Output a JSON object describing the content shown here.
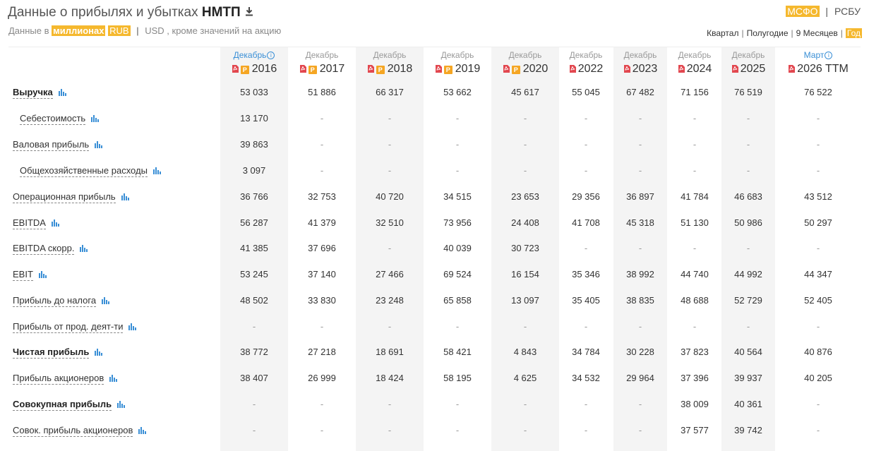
{
  "header": {
    "title_prefix": "Данные о прибылях и убытках",
    "company": "НМТП",
    "subtitle_prefix": "Данные в",
    "unit_scale": "миллионах",
    "currency_active": "RUB",
    "currency_other": "USD",
    "subtitle_suffix": ", кроме значений на акцию"
  },
  "standards": {
    "active": "МСФО",
    "other": "РСБУ"
  },
  "periods": [
    "Квартал",
    "Полугодие",
    "9 Месяцев",
    "Год"
  ],
  "active_period": "Год",
  "columns": [
    {
      "month": "Декабрь",
      "year": "2016",
      "info": true,
      "pdf": true,
      "p": true
    },
    {
      "month": "Декабрь",
      "year": "2017",
      "info": false,
      "pdf": true,
      "p": true
    },
    {
      "month": "Декабрь",
      "year": "2018",
      "info": false,
      "pdf": true,
      "p": true
    },
    {
      "month": "Декабрь",
      "year": "2019",
      "info": false,
      "pdf": true,
      "p": true
    },
    {
      "month": "Декабрь",
      "year": "2020",
      "info": false,
      "pdf": true,
      "p": true
    },
    {
      "month": "Декабрь",
      "year": "2022",
      "info": false,
      "pdf": true,
      "p": false
    },
    {
      "month": "Декабрь",
      "year": "2023",
      "info": false,
      "pdf": true,
      "p": false
    },
    {
      "month": "Декабрь",
      "year": "2024",
      "info": false,
      "pdf": true,
      "p": false
    },
    {
      "month": "Декабрь",
      "year": "2025",
      "info": false,
      "pdf": true,
      "p": false
    },
    {
      "month": "Март",
      "year": "2026 TTM",
      "info": true,
      "pdf": true,
      "p": false
    }
  ],
  "rows": [
    {
      "label": "Выручка",
      "bold": true,
      "indent": false,
      "values": [
        "53 033",
        "51 886",
        "66 317",
        "53 662",
        "45 617",
        "55 045",
        "67 482",
        "71 156",
        "76 519",
        "76 522"
      ]
    },
    {
      "label": "Себестоимость",
      "bold": false,
      "indent": true,
      "values": [
        "13 170",
        "-",
        "-",
        "-",
        "-",
        "-",
        "-",
        "-",
        "-",
        "-"
      ]
    },
    {
      "label": "Валовая прибыль",
      "bold": false,
      "indent": false,
      "values": [
        "39 863",
        "-",
        "-",
        "-",
        "-",
        "-",
        "-",
        "-",
        "-",
        "-"
      ]
    },
    {
      "label": "Общехозяйственные расходы",
      "bold": false,
      "indent": true,
      "values": [
        "3 097",
        "-",
        "-",
        "-",
        "-",
        "-",
        "-",
        "-",
        "-",
        "-"
      ]
    },
    {
      "label": "Операционная прибыль",
      "bold": false,
      "indent": false,
      "values": [
        "36 766",
        "32 753",
        "40 720",
        "34 515",
        "23 653",
        "29 356",
        "36 897",
        "41 784",
        "46 683",
        "43 512"
      ]
    },
    {
      "label": "EBITDA",
      "bold": false,
      "indent": false,
      "values": [
        "56 287",
        "41 379",
        "32 510",
        "73 956",
        "24 408",
        "41 708",
        "45 318",
        "51 130",
        "50 986",
        "50 297"
      ]
    },
    {
      "label": "EBITDA скорр.",
      "bold": false,
      "indent": false,
      "values": [
        "41 385",
        "37 696",
        "-",
        "40 039",
        "30 723",
        "-",
        "-",
        "-",
        "-",
        "-"
      ]
    },
    {
      "label": "EBIT",
      "bold": false,
      "indent": false,
      "values": [
        "53 245",
        "37 140",
        "27 466",
        "69 524",
        "16 154",
        "35 346",
        "38 992",
        "44 740",
        "44 992",
        "44 347"
      ]
    },
    {
      "label": "Прибыль до налога",
      "bold": false,
      "indent": false,
      "values": [
        "48 502",
        "33 830",
        "23 248",
        "65 858",
        "13 097",
        "35 405",
        "38 835",
        "48 688",
        "52 729",
        "52 405"
      ]
    },
    {
      "label": "Прибыль от прод. деят-ти",
      "bold": false,
      "indent": false,
      "values": [
        "-",
        "-",
        "-",
        "-",
        "-",
        "-",
        "-",
        "-",
        "-",
        "-"
      ]
    },
    {
      "label": "Чистая прибыль",
      "bold": true,
      "indent": false,
      "values": [
        "38 772",
        "27 218",
        "18 691",
        "58 421",
        "4 843",
        "34 784",
        "30 228",
        "37 823",
        "40 564",
        "40 876"
      ]
    },
    {
      "label": "Прибыль акционеров",
      "bold": false,
      "indent": false,
      "values": [
        "38 407",
        "26 999",
        "18 424",
        "58 195",
        "4 625",
        "34 532",
        "29 964",
        "37 396",
        "39 937",
        "40 205"
      ]
    },
    {
      "label": "Совокупная прибыль",
      "bold": true,
      "indent": false,
      "values": [
        "-",
        "-",
        "-",
        "-",
        "-",
        "-",
        "-",
        "38 009",
        "40 361",
        "-"
      ]
    },
    {
      "label": "Совок. прибыль акционеров",
      "bold": false,
      "indent": false,
      "values": [
        "-",
        "-",
        "-",
        "-",
        "-",
        "-",
        "-",
        "37 577",
        "39 742",
        "-"
      ]
    }
  ],
  "colors": {
    "accent": "#f5b82e",
    "link": "#3a8fd6",
    "chart_icon": "#3a8fd6",
    "pdf": "#e2474f",
    "shade": "#f4f4f4"
  },
  "icons": {
    "download": "download-icon",
    "chart": "bar-chart-icon",
    "pdf": "pdf-icon",
    "info": "info-icon"
  }
}
